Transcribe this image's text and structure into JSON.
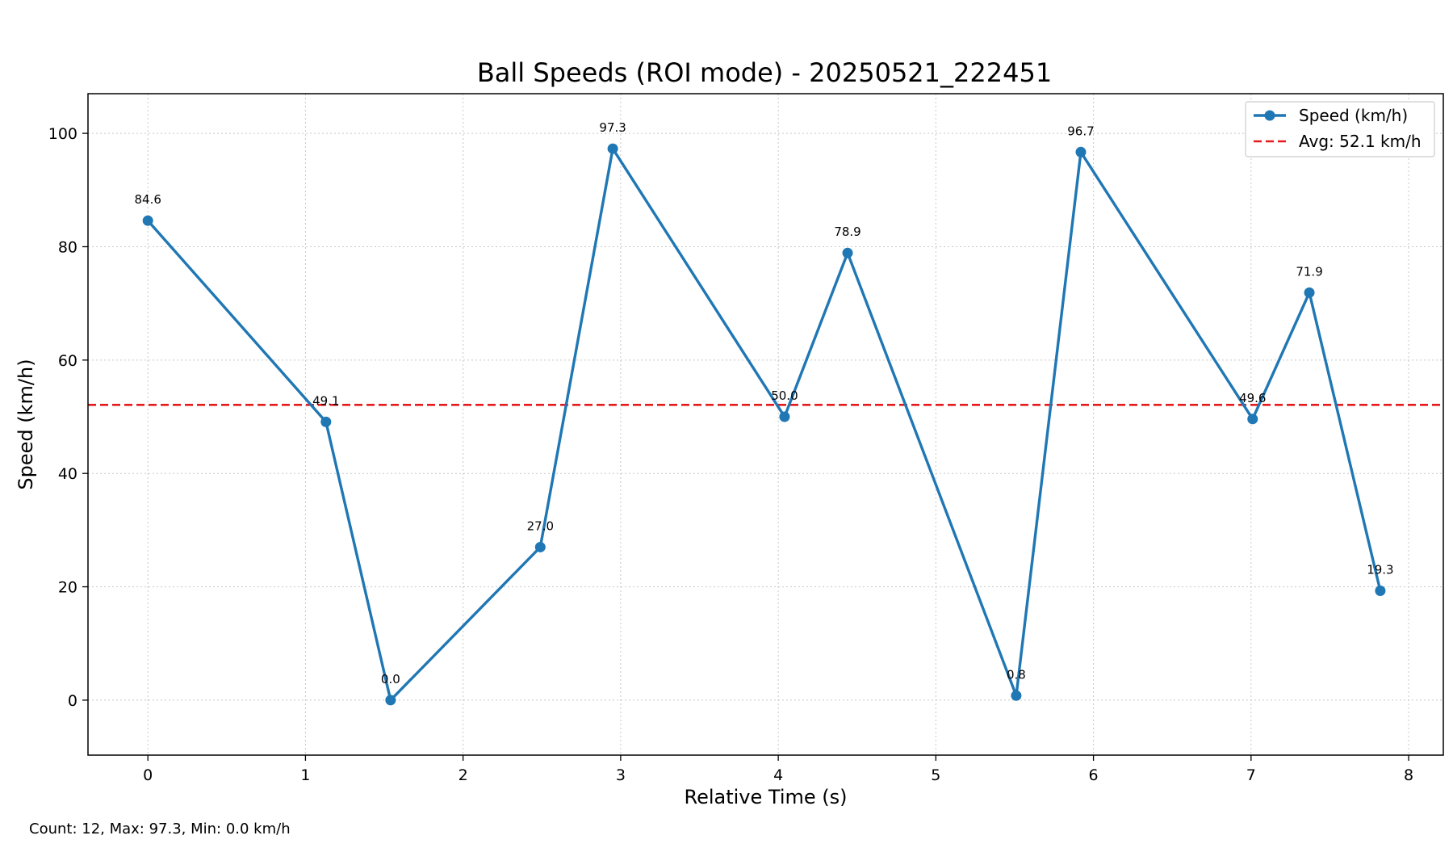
{
  "chart_data": {
    "type": "line",
    "title": "Ball Speeds (ROI mode) - 20250521_222451",
    "xlabel": "Relative Time (s)",
    "ylabel": "Speed (km/h)",
    "xlim": [
      -0.38,
      8.22
    ],
    "ylim": [
      -9.7,
      107.0
    ],
    "xticks": [
      "0",
      "1",
      "2",
      "3",
      "4",
      "5",
      "6",
      "7",
      "8"
    ],
    "yticks": [
      "0",
      "20",
      "40",
      "60",
      "80",
      "100"
    ],
    "grid": true,
    "legend_position": "top-right",
    "series": [
      {
        "name": "Speed (km/h)",
        "color": "#1f77b4",
        "x": [
          0.0,
          1.13,
          1.54,
          2.49,
          2.95,
          4.04,
          4.44,
          5.51,
          5.92,
          7.01,
          7.37,
          7.82
        ],
        "values": [
          84.6,
          49.1,
          0.0,
          27.0,
          97.3,
          50.0,
          78.9,
          0.8,
          96.7,
          49.6,
          71.9,
          19.3
        ],
        "labels": [
          "84.6",
          "49.1",
          "0.0",
          "27.0",
          "97.3",
          "50.0",
          "78.9",
          "0.8",
          "96.7",
          "49.6",
          "71.9",
          "19.3"
        ]
      }
    ],
    "average": {
      "name": "Avg: 52.1 km/h",
      "value": 52.1,
      "color": "#e41a1c"
    }
  },
  "footer_text": "Count: 12, Max: 97.3, Min: 0.0 km/h"
}
